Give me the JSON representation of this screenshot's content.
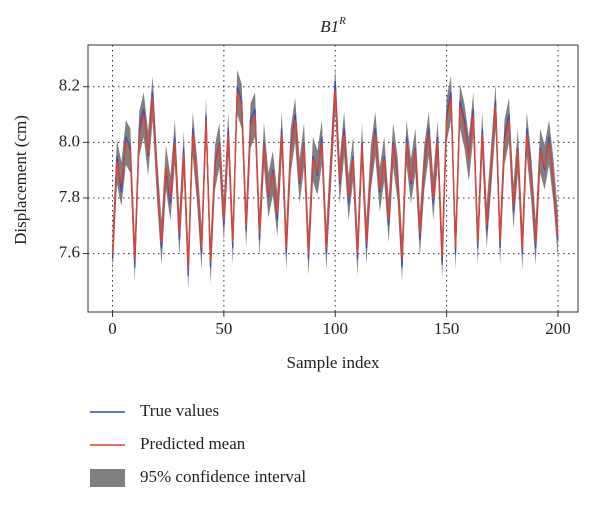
{
  "chart_data": {
    "type": "line",
    "title": "B1",
    "title_superscript": "R",
    "x_label": "Sample index",
    "y_label": "Displacement (cm)",
    "xlim": [
      -11,
      209
    ],
    "ylim": [
      7.39,
      8.35
    ],
    "xticks": [
      0,
      50,
      100,
      150,
      200
    ],
    "yticks": [
      7.6,
      7.8,
      {
        "value": 8,
        "label": "8.0"
      },
      8.2
    ],
    "grid": true,
    "x": [
      0,
      2,
      4,
      6,
      8,
      10,
      12,
      14,
      16,
      18,
      20,
      22,
      24,
      26,
      28,
      30,
      32,
      34,
      36,
      38,
      40,
      42,
      44,
      46,
      48,
      50,
      52,
      54,
      56,
      58,
      60,
      62,
      64,
      66,
      68,
      70,
      72,
      74,
      76,
      78,
      80,
      82,
      84,
      86,
      88,
      90,
      92,
      94,
      96,
      98,
      100,
      102,
      104,
      106,
      108,
      110,
      112,
      114,
      116,
      118,
      120,
      122,
      124,
      126,
      128,
      130,
      132,
      134,
      136,
      138,
      140,
      142,
      144,
      146,
      148,
      150,
      152,
      154,
      156,
      158,
      160,
      162,
      164,
      166,
      168,
      170,
      172,
      174,
      176,
      178,
      180,
      182,
      184,
      186,
      188,
      190,
      192,
      194,
      196,
      198,
      200
    ],
    "band": {
      "name": "95% confidence interval",
      "color": "#7f7f7f",
      "lower": [
        7.52,
        7.85,
        7.77,
        7.92,
        7.89,
        7.5,
        7.95,
        8.02,
        7.88,
        8.08,
        7.79,
        7.56,
        7.83,
        7.72,
        7.92,
        7.59,
        7.88,
        7.47,
        7.95,
        7.78,
        7.54,
        8.0,
        7.49,
        7.83,
        7.91,
        7.64,
        7.95,
        7.56,
        8.1,
        8.05,
        7.62,
        7.98,
        8.02,
        7.59,
        7.91,
        7.73,
        7.81,
        7.66,
        7.95,
        7.54,
        7.89,
        8.0,
        7.78,
        7.91,
        7.52,
        7.86,
        7.81,
        7.92,
        7.54,
        7.83,
        8.11,
        7.78,
        7.95,
        7.72,
        7.86,
        7.52,
        7.91,
        7.56,
        7.83,
        7.95,
        7.75,
        7.86,
        7.64,
        7.91,
        7.79,
        7.5,
        7.92,
        7.78,
        7.89,
        7.59,
        7.83,
        7.95,
        7.72,
        7.92,
        7.51,
        8.0,
        8.08,
        7.54,
        8.05,
        7.98,
        7.86,
        8.02,
        7.56,
        7.95,
        7.62,
        7.83,
        8.05,
        7.56,
        7.92,
        8.0,
        7.69,
        7.89,
        7.54,
        7.95,
        7.79,
        7.56,
        7.89,
        7.83,
        7.92,
        7.78,
        7.58
      ],
      "upper": [
        7.68,
        8.01,
        7.93,
        8.08,
        8.05,
        7.66,
        8.11,
        8.18,
        8.04,
        8.24,
        7.95,
        7.72,
        7.99,
        7.88,
        8.08,
        7.75,
        8.04,
        7.63,
        8.11,
        7.94,
        7.7,
        8.16,
        7.65,
        7.99,
        8.07,
        7.8,
        8.11,
        7.72,
        8.26,
        8.21,
        7.78,
        8.14,
        8.18,
        7.75,
        8.07,
        7.89,
        7.97,
        7.82,
        8.11,
        7.7,
        8.05,
        8.16,
        7.94,
        8.07,
        7.68,
        8.02,
        7.97,
        8.08,
        7.7,
        7.99,
        8.27,
        7.94,
        8.11,
        7.88,
        8.02,
        7.68,
        8.07,
        7.72,
        7.99,
        8.11,
        7.91,
        8.02,
        7.8,
        8.07,
        7.95,
        7.66,
        8.08,
        7.94,
        8.05,
        7.75,
        7.99,
        8.11,
        7.88,
        8.08,
        7.67,
        8.16,
        8.24,
        7.7,
        8.21,
        8.14,
        8.02,
        8.18,
        7.72,
        8.11,
        7.78,
        7.99,
        8.21,
        7.72,
        8.08,
        8.16,
        7.85,
        8.05,
        7.7,
        8.11,
        7.95,
        7.72,
        8.05,
        7.99,
        8.08,
        7.94,
        7.74
      ]
    },
    "series": [
      {
        "name": "True values",
        "color": "#3c4fb5",
        "values": [
          7.58,
          7.95,
          7.82,
          8.02,
          7.98,
          7.55,
          8.05,
          8.12,
          7.95,
          8.18,
          7.88,
          7.62,
          7.9,
          7.78,
          8.02,
          7.65,
          7.98,
          7.52,
          8.05,
          7.85,
          7.6,
          8.1,
          7.55,
          7.92,
          8.0,
          7.7,
          8.05,
          7.62,
          8.2,
          8.15,
          7.68,
          8.08,
          8.12,
          7.65,
          8.0,
          7.8,
          7.9,
          7.72,
          8.05,
          7.6,
          7.98,
          8.1,
          7.85,
          8.0,
          7.58,
          7.95,
          7.88,
          8.02,
          7.6,
          7.9,
          8.22,
          7.85,
          8.05,
          7.78,
          7.95,
          7.58,
          8.0,
          7.62,
          7.9,
          8.05,
          7.82,
          7.95,
          7.7,
          8.0,
          7.88,
          7.55,
          8.02,
          7.85,
          7.98,
          7.65,
          7.92,
          8.05,
          7.78,
          8.02,
          7.56,
          8.1,
          8.18,
          7.6,
          8.15,
          8.08,
          7.95,
          8.12,
          7.62,
          8.05,
          7.68,
          7.9,
          8.15,
          7.62,
          8.02,
          8.1,
          7.75,
          7.98,
          7.6,
          8.05,
          7.88,
          7.62,
          7.98,
          7.9,
          8.02,
          7.85,
          7.65
        ]
      },
      {
        "name": "Predicted mean",
        "color": "#e8412c",
        "values": [
          7.6,
          7.93,
          7.85,
          8.0,
          7.97,
          7.58,
          8.03,
          8.1,
          7.96,
          8.16,
          7.87,
          7.64,
          7.91,
          7.8,
          8.0,
          7.67,
          7.96,
          7.55,
          8.03,
          7.86,
          7.62,
          8.08,
          7.57,
          7.91,
          7.99,
          7.72,
          8.03,
          7.64,
          8.18,
          8.13,
          7.7,
          8.06,
          8.1,
          7.67,
          7.99,
          7.81,
          7.89,
          7.74,
          8.03,
          7.62,
          7.97,
          8.08,
          7.86,
          7.99,
          7.6,
          7.94,
          7.89,
          8.0,
          7.62,
          7.91,
          8.19,
          7.86,
          8.03,
          7.8,
          7.94,
          7.6,
          7.99,
          7.64,
          7.91,
          8.03,
          7.83,
          7.94,
          7.72,
          7.99,
          7.87,
          7.58,
          8.0,
          7.86,
          7.97,
          7.67,
          7.91,
          8.03,
          7.8,
          8.0,
          7.59,
          8.08,
          8.16,
          7.62,
          8.13,
          8.06,
          7.94,
          8.1,
          7.64,
          8.03,
          7.7,
          7.91,
          8.13,
          7.64,
          8.0,
          8.08,
          7.77,
          7.97,
          7.62,
          8.03,
          7.87,
          7.64,
          7.97,
          7.91,
          8.0,
          7.86,
          7.66
        ]
      }
    ]
  }
}
